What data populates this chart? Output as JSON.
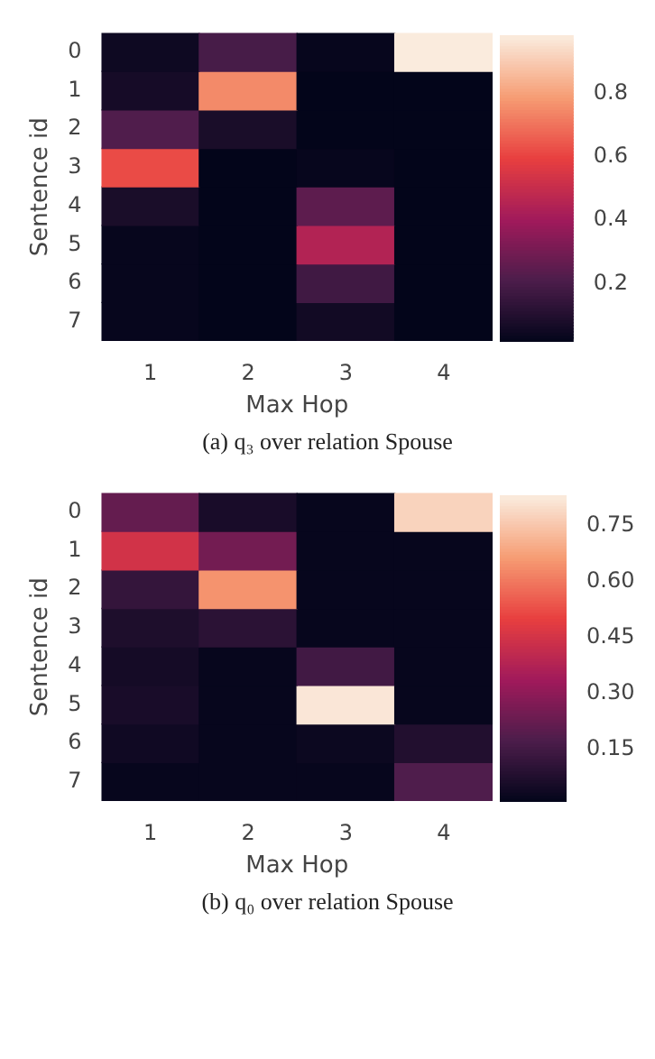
{
  "chart_data": [
    {
      "type": "heatmap",
      "xlabel": "Max Hop",
      "ylabel": "Sentence id",
      "annotations": [
        "(a) q₃ over relation Spouse"
      ],
      "categories": [
        "1",
        "2",
        "3",
        "4"
      ],
      "y_categories": [
        "0",
        "1",
        "2",
        "3",
        "4",
        "5",
        "6",
        "7"
      ],
      "cells": [
        [
          0.05,
          0.2,
          0.03,
          0.98
        ],
        [
          0.07,
          0.75,
          0.02,
          0.02
        ],
        [
          0.22,
          0.08,
          0.02,
          0.02
        ],
        [
          0.62,
          0.02,
          0.03,
          0.02
        ],
        [
          0.08,
          0.02,
          0.25,
          0.02
        ],
        [
          0.03,
          0.02,
          0.45,
          0.02
        ],
        [
          0.03,
          0.02,
          0.18,
          0.02
        ],
        [
          0.03,
          0.02,
          0.06,
          0.02
        ]
      ],
      "clim": [
        0.02,
        0.98
      ],
      "cticks": [
        0.2,
        0.4,
        0.6,
        0.8
      ]
    },
    {
      "type": "heatmap",
      "xlabel": "Max Hop",
      "ylabel": "Sentence id",
      "annotations": [
        "(b) q₀ over relation Spouse"
      ],
      "categories": [
        "1",
        "2",
        "3",
        "4"
      ],
      "y_categories": [
        "0",
        "1",
        "2",
        "3",
        "4",
        "5",
        "6",
        "7"
      ],
      "cells": [
        [
          0.22,
          0.06,
          0.02,
          0.78
        ],
        [
          0.45,
          0.25,
          0.02,
          0.02
        ],
        [
          0.12,
          0.65,
          0.02,
          0.02
        ],
        [
          0.07,
          0.1,
          0.02,
          0.02
        ],
        [
          0.05,
          0.02,
          0.15,
          0.02
        ],
        [
          0.06,
          0.02,
          0.82,
          0.02
        ],
        [
          0.04,
          0.02,
          0.03,
          0.08
        ],
        [
          0.02,
          0.02,
          0.02,
          0.18
        ]
      ],
      "clim": [
        0.01,
        0.83
      ],
      "cticks": [
        {
          "value": 0.15,
          "label": "0.15"
        },
        {
          "value": 0.3,
          "label": "0.30"
        },
        {
          "value": 0.45,
          "label": "0.45"
        },
        {
          "value": 0.6,
          "label": "0.60"
        },
        {
          "value": 0.75,
          "label": "0.75"
        }
      ]
    }
  ]
}
